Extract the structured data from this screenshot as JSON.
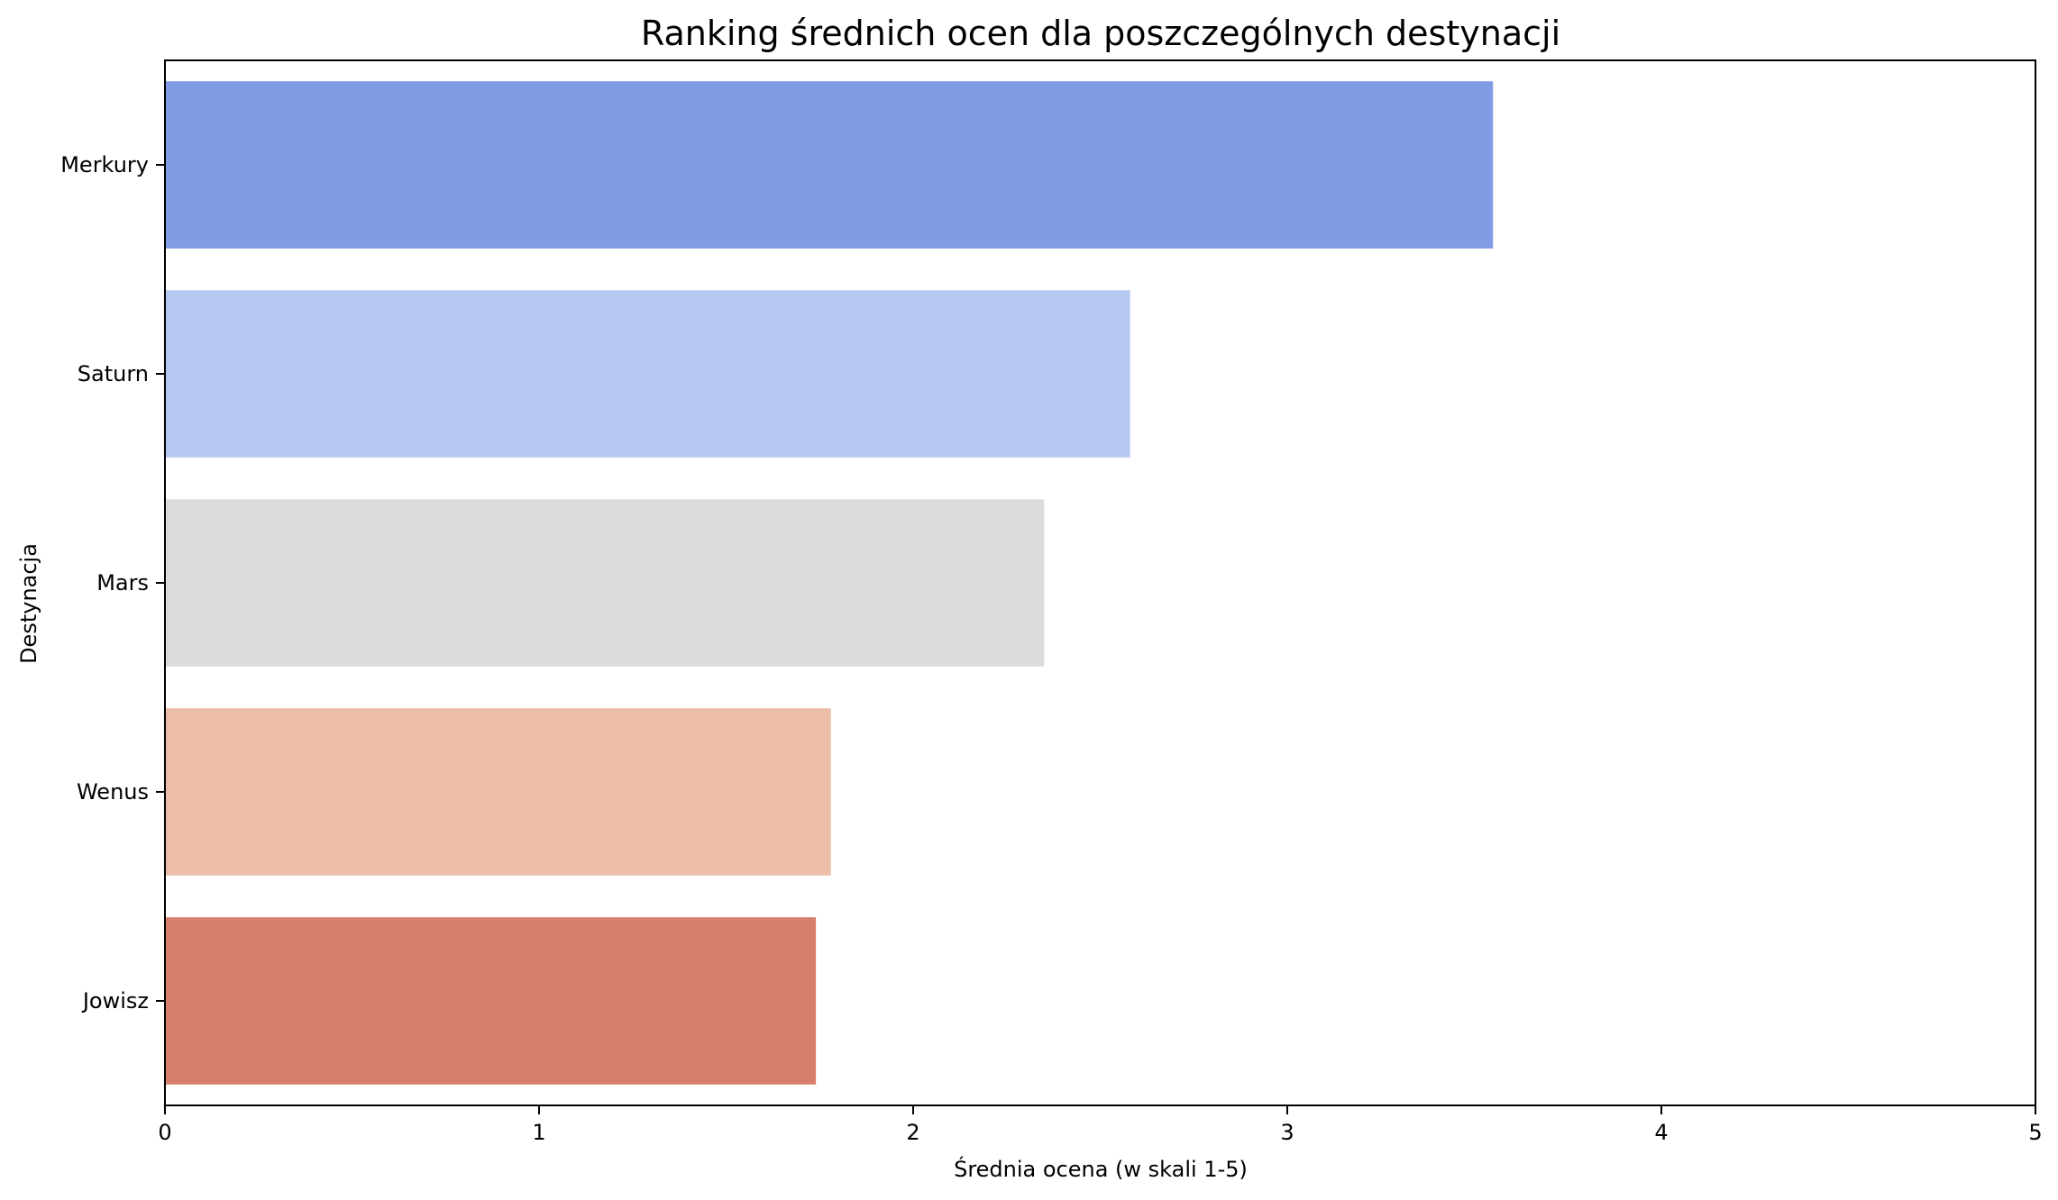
{
  "chart_data": {
    "type": "bar",
    "orientation": "horizontal",
    "title": "Ranking średnich ocen dla poszczególnych destynacji",
    "xlabel": "Średnia ocena (w skali 1-5)",
    "ylabel": "Destynacja",
    "categories": [
      "Merkury",
      "Saturn",
      "Mars",
      "Wenus",
      "Jowisz"
    ],
    "values": [
      3.55,
      2.58,
      2.35,
      1.78,
      1.74
    ],
    "colors": [
      "#819bE4",
      "#b5c9f3",
      "#dcdcdc",
      "#ecbda8",
      "#d77f6d"
    ],
    "xlim": [
      0,
      5
    ],
    "xticks": [
      "0",
      "1",
      "2",
      "3",
      "4",
      "5"
    ],
    "grid": false,
    "legend": "none"
  }
}
